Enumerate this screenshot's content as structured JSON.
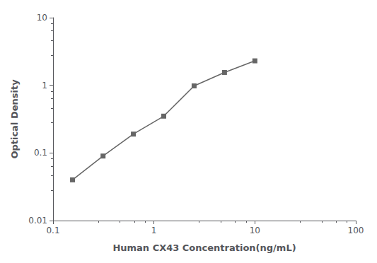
{
  "chart_data": {
    "type": "line",
    "x": [
      0.156,
      0.313,
      0.625,
      1.25,
      2.5,
      5.0,
      10.0
    ],
    "values": [
      0.04,
      0.09,
      0.19,
      0.35,
      0.98,
      1.55,
      2.3
    ],
    "xlabel": "Human CX43 Concentration(ng/mL)",
    "ylabel": "Optical Density",
    "xlim": [
      0.1,
      100
    ],
    "ylim": [
      0.01,
      10
    ],
    "xticks": [
      0.1,
      1,
      10,
      100
    ],
    "yticks": [
      0.01,
      0.1,
      1,
      10
    ],
    "log": true,
    "grid": false,
    "color": "#666666",
    "marker": "square"
  }
}
